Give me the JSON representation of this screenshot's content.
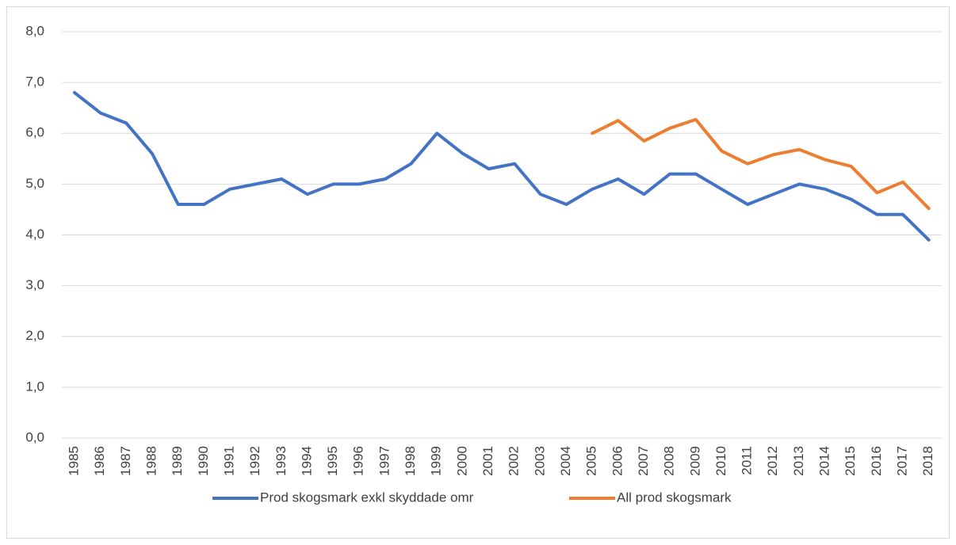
{
  "chart_data": {
    "type": "line",
    "categories": [
      "1985",
      "1986",
      "1987",
      "1988",
      "1989",
      "1990",
      "1991",
      "1992",
      "1993",
      "1994",
      "1995",
      "1996",
      "1997",
      "1998",
      "1999",
      "2000",
      "2001",
      "2002",
      "2003",
      "2004",
      "2005",
      "2006",
      "2007",
      "2008",
      "2009",
      "2010",
      "2011",
      "2012",
      "2013",
      "2014",
      "2015",
      "2016",
      "2017",
      "2018"
    ],
    "series": [
      {
        "name": "Prod skogsmark exkl skyddade omr",
        "color": "#4472c4",
        "values": [
          6.8,
          6.4,
          6.2,
          5.6,
          4.6,
          4.6,
          4.9,
          5.0,
          5.1,
          4.8,
          5.0,
          5.0,
          5.1,
          5.4,
          6.0,
          5.6,
          5.3,
          5.4,
          4.8,
          4.6,
          4.9,
          5.1,
          4.8,
          5.2,
          5.2,
          4.9,
          4.6,
          4.8,
          5.0,
          4.9,
          4.7,
          4.4,
          4.4,
          3.9
        ]
      },
      {
        "name": "All prod skogsmark",
        "color": "#ed7d31",
        "values": [
          null,
          null,
          null,
          null,
          null,
          null,
          null,
          null,
          null,
          null,
          null,
          null,
          null,
          null,
          null,
          null,
          null,
          null,
          null,
          null,
          6.0,
          6.25,
          5.85,
          6.1,
          6.27,
          5.65,
          5.4,
          5.58,
          5.68,
          5.48,
          5.35,
          4.83,
          5.04,
          4.52
        ]
      }
    ],
    "ylim": [
      0,
      8
    ],
    "yticks": [
      {
        "value": 0,
        "label": "0,0"
      },
      {
        "value": 1,
        "label": "1,0"
      },
      {
        "value": 2,
        "label": "2,0"
      },
      {
        "value": 3,
        "label": "3,0"
      },
      {
        "value": 4,
        "label": "4,0"
      },
      {
        "value": 5,
        "label": "5,0"
      },
      {
        "value": 6,
        "label": "6,0"
      },
      {
        "value": 7,
        "label": "7,0"
      },
      {
        "value": 8,
        "label": "8,0"
      }
    ],
    "grid": true,
    "legend": "bottom"
  }
}
